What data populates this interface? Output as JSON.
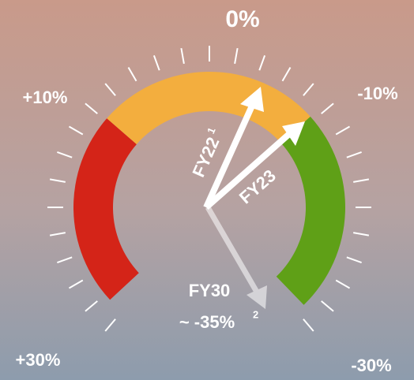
{
  "scale": {
    "top": "0%",
    "upper_left": "+10%",
    "upper_right": "-10%",
    "lower_left": "+30%",
    "lower_right": "-30%"
  },
  "arrows": [
    {
      "label": "FY22",
      "note": "1"
    },
    {
      "label": "FY23"
    },
    {
      "label": "FY30",
      "sublabel": "~ -35%",
      "note": "2"
    }
  ]
}
